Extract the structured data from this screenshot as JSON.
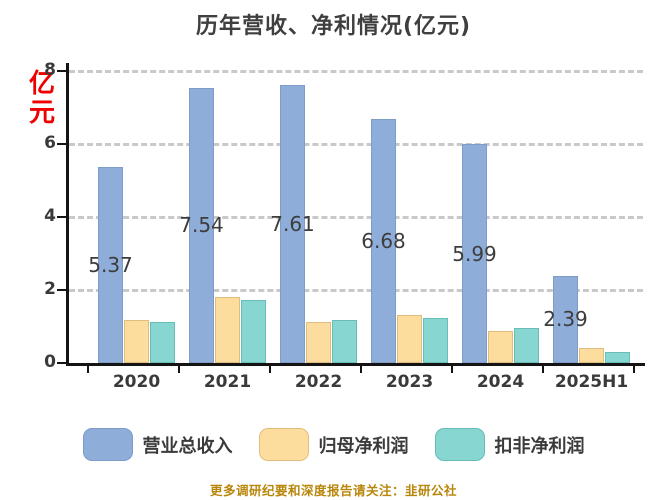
{
  "title": "历年营收、净利情况(亿元)",
  "y_axis_unit": "亿元",
  "footer": "更多调研纪要和深度报告请关注：韭研公社",
  "colors": {
    "axis": "#141414",
    "grid": "#c9c9c9",
    "title_text": "#3f3f3f",
    "bar_label_text": "#3d3d3d",
    "unit_label_red": "#ee0000",
    "footer_gold": "#b8860b"
  },
  "chart_data": {
    "type": "bar",
    "title": "历年营收、净利情况(亿元)",
    "categories": [
      "2020",
      "2021",
      "2022",
      "2023",
      "2024",
      "2025H1"
    ],
    "series": [
      {
        "name": "营业总收入",
        "color": "#8fadd9",
        "border_color": "#7d9cc8",
        "values": [
          5.37,
          7.54,
          7.61,
          6.68,
          5.99,
          2.39
        ],
        "labels": [
          "5.37",
          "7.54",
          "7.61",
          "6.68",
          "5.99",
          "2.39"
        ]
      },
      {
        "name": "归母净利润",
        "color": "#fcdd9e",
        "border_color": "#e0bd7e",
        "values": [
          1.18,
          1.81,
          1.12,
          1.31,
          0.88,
          0.41
        ]
      },
      {
        "name": "扣非净利润",
        "color": "#87d6d1",
        "border_color": "#68bdb7",
        "values": [
          1.12,
          1.72,
          1.18,
          1.23,
          0.96,
          0.3
        ]
      }
    ],
    "ylim": [
      0,
      8
    ],
    "y_ticks": [
      0,
      2,
      4,
      6,
      8
    ],
    "y_tick_labels": [
      "0",
      "2",
      "4",
      "6",
      "8"
    ],
    "grid": "dashed-horizontal",
    "legend_position": "bottom",
    "data_labels_series": "营业总收入"
  }
}
